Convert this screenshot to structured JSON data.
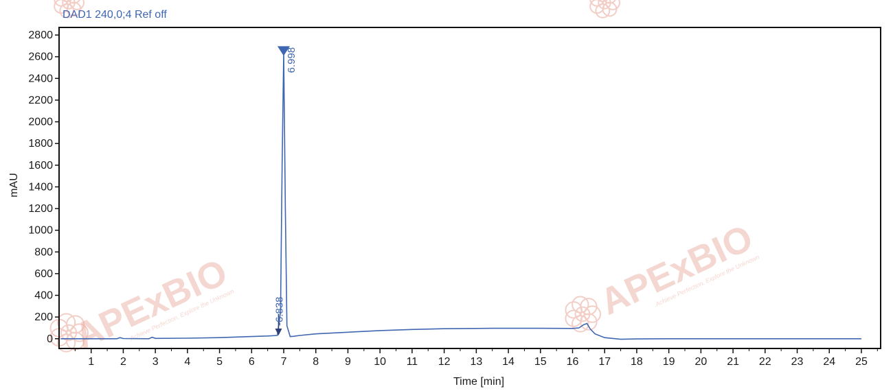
{
  "chart_data": {
    "type": "line",
    "title": "DAD1 240,0;4 Ref off",
    "xlabel": "Time [min]",
    "ylabel": "mAU",
    "xlim": [
      0,
      25.6
    ],
    "ylim": [
      -90,
      2870
    ],
    "xticks": [
      1,
      2,
      3,
      4,
      5,
      6,
      7,
      8,
      9,
      10,
      11,
      12,
      13,
      14,
      15,
      16,
      17,
      18,
      19,
      20,
      21,
      22,
      23,
      24,
      25
    ],
    "yticks": [
      0,
      200,
      400,
      600,
      800,
      1000,
      1200,
      1400,
      1600,
      1800,
      2000,
      2200,
      2400,
      2600,
      2800
    ],
    "grid": false,
    "series": [
      {
        "color": "#3f66b0",
        "x": [
          0.05,
          1.0,
          1.8,
          1.9,
          2.0,
          2.8,
          2.9,
          3.0,
          4.0,
          5.0,
          6.0,
          6.5,
          6.8,
          6.9,
          6.95,
          7.0,
          7.05,
          7.1,
          7.2,
          7.3,
          7.5,
          8.0,
          9.0,
          10.0,
          11.0,
          12.0,
          13.0,
          13.5,
          14.0,
          15.0,
          16.0,
          16.2,
          16.35,
          16.45,
          16.55,
          16.7,
          17.0,
          17.5,
          18.0,
          19.0,
          20.0,
          22.0,
          24.0,
          25.0
        ],
        "y": [
          0,
          0,
          0,
          10,
          2,
          0,
          14,
          3,
          5,
          10,
          20,
          25,
          30,
          250,
          1600,
          2640,
          1200,
          120,
          20,
          22,
          30,
          45,
          60,
          75,
          85,
          92,
          95,
          96,
          96,
          96,
          95,
          100,
          130,
          140,
          90,
          45,
          10,
          -5,
          -2,
          0,
          0,
          0,
          0,
          0
        ]
      }
    ],
    "peaks": [
      {
        "label": "6.998",
        "x": 6.998,
        "y": 2640
      },
      {
        "label": "6.838",
        "x": 6.838,
        "y": 30
      }
    ]
  },
  "watermark": {
    "brand": "APExBIO",
    "tagline": "Achieve Perfection, Explore the Unknown",
    "colors": {
      "brand": "#e9a79b",
      "accent": "#d9534f"
    }
  }
}
